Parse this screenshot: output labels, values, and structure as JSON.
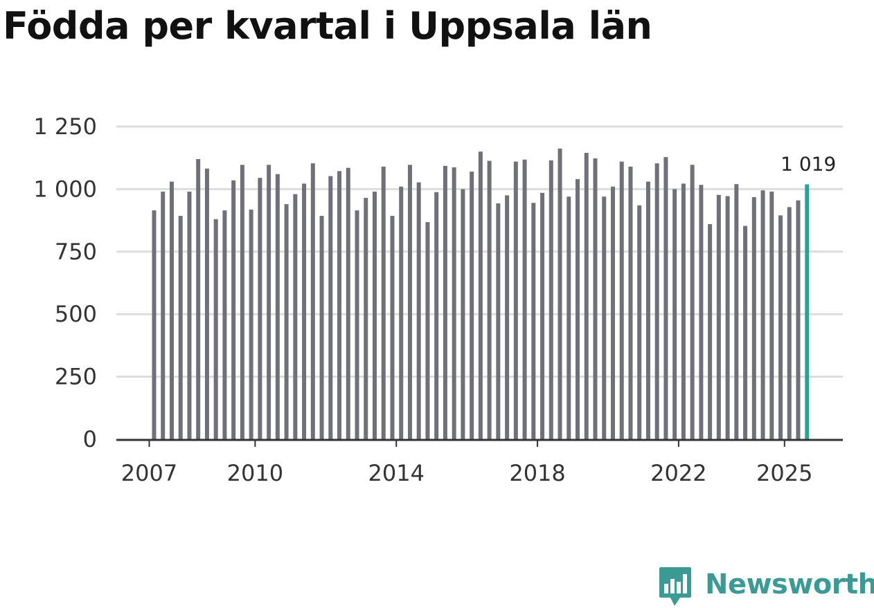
{
  "title": "Födda per kvartal i Uppsala län",
  "brand": {
    "name": "Newsworthy",
    "color": "#3c9a94",
    "icon": "bar-chart-speech-bubble-icon"
  },
  "chart_data": {
    "type": "bar",
    "title": "Födda per kvartal i Uppsala län",
    "xlabel": "",
    "ylabel": "",
    "ylim": [
      0,
      1250
    ],
    "y_ticks": [
      0,
      250,
      500,
      750,
      1000,
      1250
    ],
    "y_tick_labels": [
      "0",
      "250",
      "500",
      "750",
      "1 000",
      "1 250"
    ],
    "x_tick_labels": [
      "2007",
      "2010",
      "2014",
      "2018",
      "2022",
      "2025"
    ],
    "grid": true,
    "bar_color": "#707078",
    "highlight_color": "#26a49b",
    "highlight_label": "1 019",
    "start": "2007-Q1",
    "frequency": "quarter",
    "values": [
      915,
      990,
      1030,
      893,
      990,
      1120,
      1082,
      880,
      915,
      1035,
      1097,
      918,
      1045,
      1097,
      1060,
      940,
      980,
      1022,
      1103,
      893,
      1052,
      1072,
      1085,
      915,
      965,
      990,
      1090,
      893,
      1010,
      1097,
      1027,
      868,
      988,
      1093,
      1087,
      1000,
      1070,
      1150,
      1113,
      943,
      975,
      1110,
      1118,
      945,
      985,
      1115,
      1162,
      970,
      1040,
      1145,
      1123,
      970,
      1010,
      1110,
      1090,
      935,
      1030,
      1103,
      1128,
      1000,
      1022,
      1097,
      1017,
      860,
      977,
      972,
      1020,
      853,
      968,
      995,
      990,
      895,
      928,
      955,
      1019
    ]
  }
}
